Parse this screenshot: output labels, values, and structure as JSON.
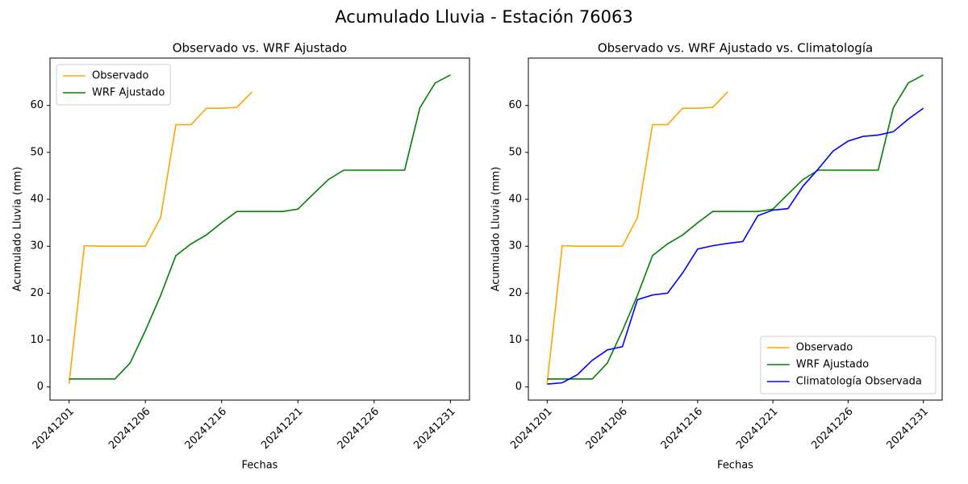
{
  "title": "Acumulado Lluvia - Estación 76063",
  "chart_data": [
    {
      "type": "line",
      "title": "Observado vs. WRF Ajustado",
      "xlabel": "Fechas",
      "ylabel": "Acumulado Lluvia (mm)",
      "categories": [
        "20241201",
        null,
        null,
        null,
        null,
        "20241206",
        null,
        null,
        null,
        null,
        "20241216",
        null,
        null,
        null,
        null,
        "20241221",
        null,
        null,
        null,
        null,
        "20241226",
        null,
        null,
        null,
        null,
        "20241231"
      ],
      "series": [
        {
          "name": "Observado",
          "color": "orange",
          "values": [
            0.7,
            30.1,
            30,
            30,
            30,
            30,
            36.1,
            55.9,
            55.9,
            59.4,
            59.4,
            59.6,
            62.9,
            null,
            null,
            null,
            null,
            null,
            null,
            null,
            null,
            null,
            null,
            null,
            null,
            null
          ]
        },
        {
          "name": "WRF Ajustado",
          "color": "green",
          "values": [
            1.7,
            1.7,
            1.7,
            1.7,
            5.1,
            12.0,
            19.5,
            28.0,
            30.5,
            32.4,
            35.0,
            37.4,
            37.4,
            37.4,
            37.4,
            37.9,
            41.1,
            44.2,
            46.2,
            46.2,
            46.2,
            46.2,
            46.2,
            59.5,
            64.8,
            66.5
          ]
        }
      ],
      "ylim": [
        -2.8,
        70.1
      ],
      "yticks": [
        0,
        10,
        20,
        30,
        40,
        50,
        60
      ],
      "legend": "upper-left"
    },
    {
      "type": "line",
      "title": "Observado vs. WRF Ajustado vs. Climatología",
      "xlabel": "Fechas",
      "ylabel": "Acumulado Lluvia (mm)",
      "categories": [
        "20241201",
        null,
        null,
        null,
        null,
        "20241206",
        null,
        null,
        null,
        null,
        "20241216",
        null,
        null,
        null,
        null,
        "20241221",
        null,
        null,
        null,
        null,
        "20241226",
        null,
        null,
        null,
        null,
        "20241231"
      ],
      "series": [
        {
          "name": "Observado",
          "color": "orange",
          "values": [
            0.7,
            30.1,
            30,
            30,
            30,
            30,
            36.1,
            55.9,
            55.9,
            59.4,
            59.4,
            59.6,
            62.9,
            null,
            null,
            null,
            null,
            null,
            null,
            null,
            null,
            null,
            null,
            null,
            null,
            null
          ]
        },
        {
          "name": "WRF Ajustado",
          "color": "green",
          "values": [
            1.7,
            1.7,
            1.7,
            1.7,
            5.1,
            12.0,
            19.5,
            28.0,
            30.5,
            32.4,
            35.0,
            37.4,
            37.4,
            37.4,
            37.4,
            37.9,
            41.1,
            44.2,
            46.2,
            46.2,
            46.2,
            46.2,
            46.2,
            59.5,
            64.8,
            66.5
          ]
        },
        {
          "name": "Climatología Observada",
          "color": "blue",
          "values": [
            0.6,
            0.9,
            2.6,
            5.7,
            7.9,
            8.6,
            18.6,
            19.6,
            20.0,
            24.3,
            29.4,
            30.1,
            30.6,
            31.0,
            36.5,
            37.7,
            38.0,
            42.8,
            46.4,
            50.3,
            52.4,
            53.4,
            53.7,
            54.4,
            57.1,
            59.4
          ]
        }
      ],
      "ylim": [
        -2.8,
        70.1
      ],
      "yticks": [
        0,
        10,
        20,
        30,
        40,
        50,
        60
      ],
      "legend": "lower-right"
    }
  ]
}
